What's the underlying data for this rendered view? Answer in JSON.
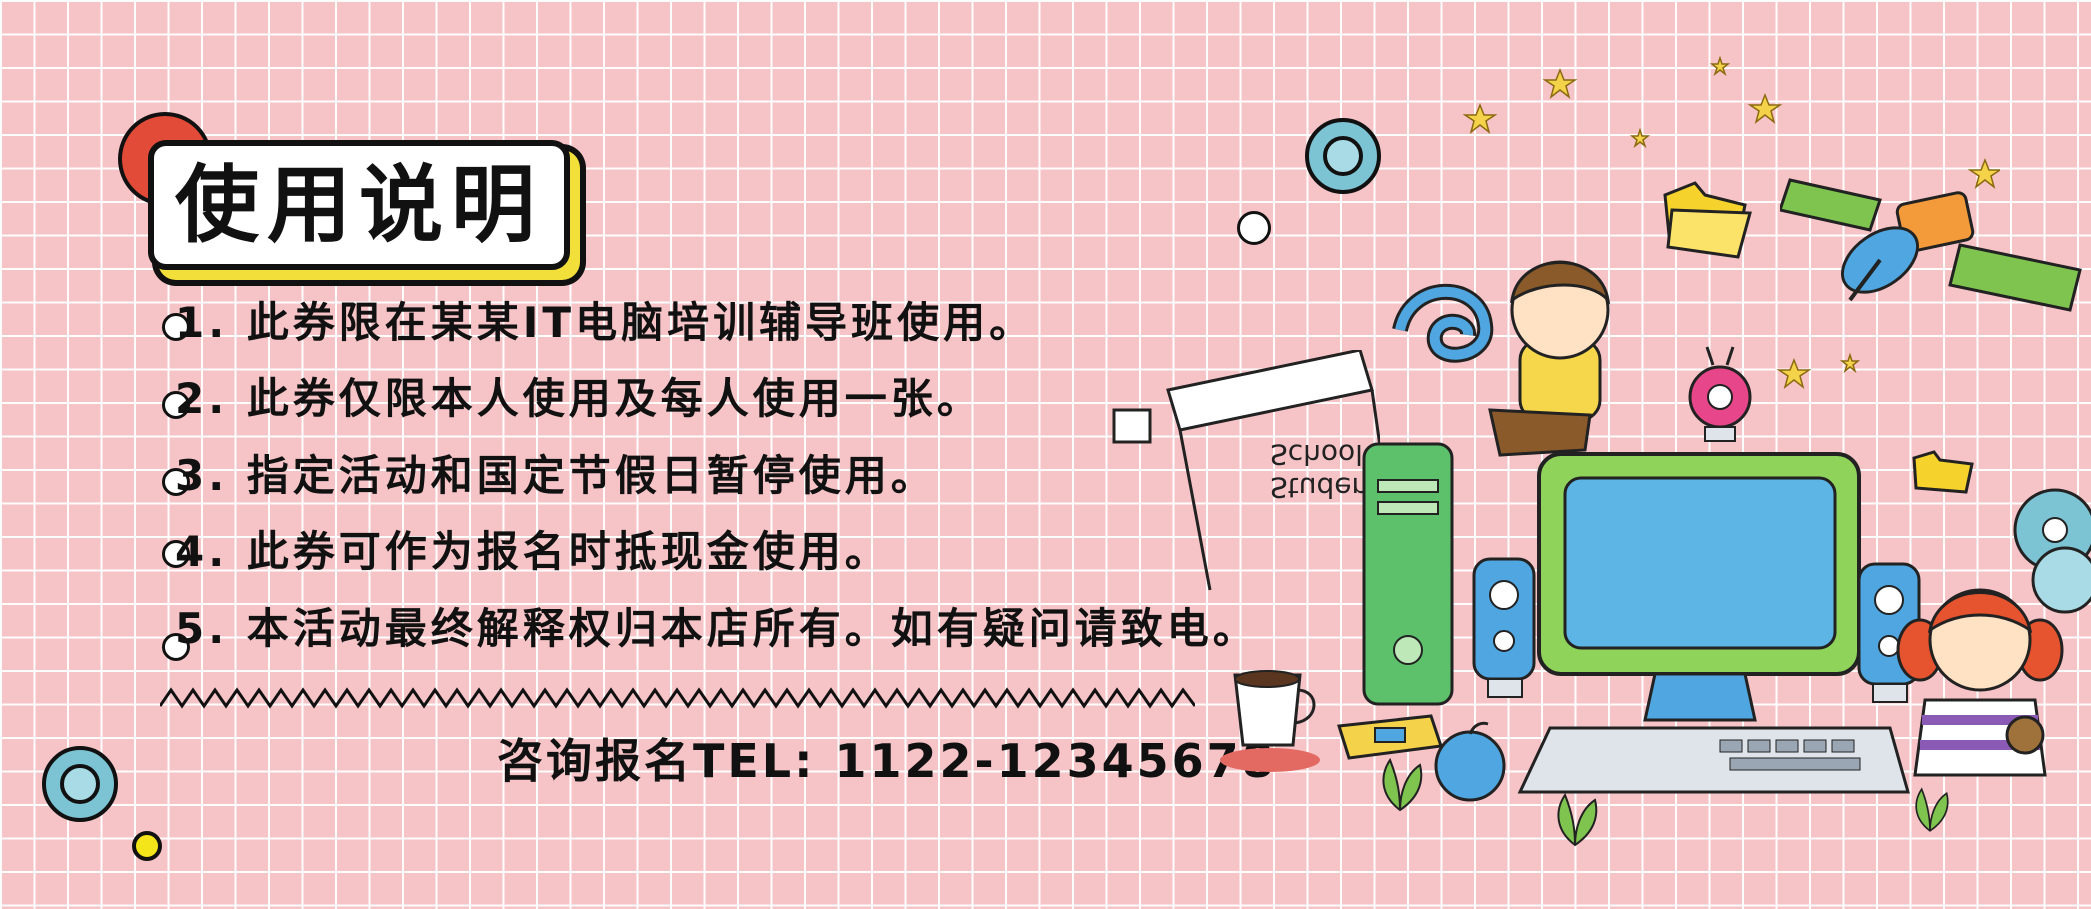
{
  "title": "使用说明",
  "items": [
    "1. 此券限在某某IT电脑培训辅导班使用。",
    "2. 此券仅限本人使用及每人使用一张。",
    "3. 指定活动和国定节假日暂停使用。",
    "4. 此券可作为报名时抵现金使用。",
    "5. 本活动最终解释权归本店所有。如有疑问请致电。"
  ],
  "contact": "咨询报名TEL: 1122-12345678",
  "illustration": {
    "sign_text_line1": "School",
    "sign_text_line2": "Student"
  },
  "colors": {
    "background": "#f6c4c7",
    "grid": "#ffffff",
    "title_dot": "#e24b38",
    "title_shadow": "#f2df3a",
    "ring": "#7cc3d4",
    "monitor_frame": "#8fd35a",
    "monitor_screen": "#5db5e6"
  }
}
